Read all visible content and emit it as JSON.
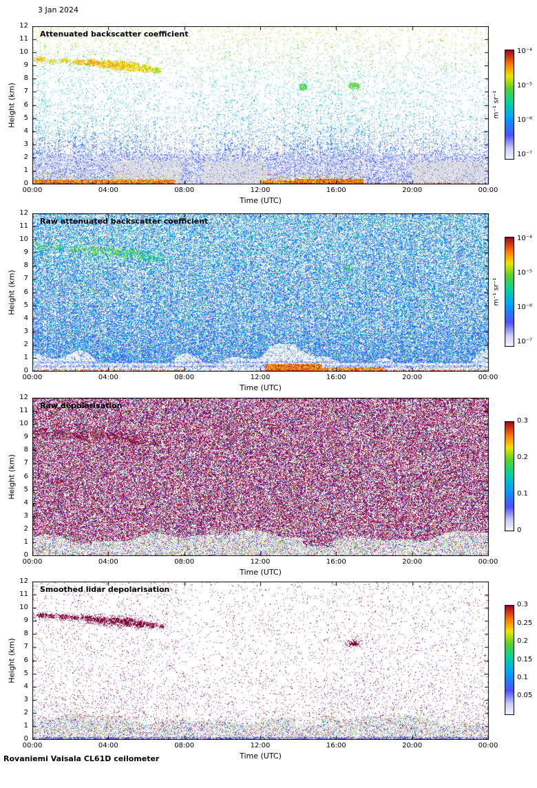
{
  "page": {
    "date_label": "3 Jan 2024",
    "footer_label": "Rovaniemi Vaisala CL61D ceilometer",
    "background": "#ffffff",
    "text_color": "#000000"
  },
  "colormap_stops": [
    [
      0.0,
      248,
      248,
      255
    ],
    [
      0.1,
      200,
      204,
      244
    ],
    [
      0.22,
      80,
      80,
      255
    ],
    [
      0.38,
      0,
      160,
      255
    ],
    [
      0.52,
      0,
      210,
      160
    ],
    [
      0.65,
      90,
      210,
      40
    ],
    [
      0.76,
      240,
      230,
      0
    ],
    [
      0.87,
      255,
      120,
      0
    ],
    [
      1.0,
      160,
      0,
      40
    ]
  ],
  "chart_data": [
    {
      "type": "heatmap",
      "kind": "backscatter",
      "seed": 11,
      "title": "Attenuated backscatter coefficient",
      "xlabel": "Time (UTC)",
      "ylabel": "Height (km)",
      "x_ticks": [
        {
          "t": 0,
          "label": "00:00"
        },
        {
          "t": 4,
          "label": "04:00"
        },
        {
          "t": 8,
          "label": "08:00"
        },
        {
          "t": 12,
          "label": "12:00"
        },
        {
          "t": 16,
          "label": "16:00"
        },
        {
          "t": 20,
          "label": "20:00"
        },
        {
          "t": 24,
          "label": "00:00"
        }
      ],
      "y_ticks": [
        0,
        1,
        2,
        3,
        4,
        5,
        6,
        7,
        8,
        9,
        10,
        11,
        12
      ],
      "xlim_hours": [
        0,
        24
      ],
      "ylim_km": [
        0,
        12
      ],
      "colorbar": {
        "scale": "log",
        "unit_label": "m⁻¹ sr⁻¹",
        "range": [
          "1e-7",
          "1e-4"
        ],
        "ticks": [
          {
            "label": "10⁻⁴",
            "pos": 0.02
          },
          {
            "label": "10⁻⁵",
            "pos": 0.335
          },
          {
            "label": "10⁻⁶",
            "pos": 0.65
          },
          {
            "label": "10⁻⁷",
            "pos": 0.965
          }
        ]
      },
      "features": {
        "cloud_layer": {
          "note": "green-yellow cloud band descending 9.5 to 8.6 km between 00:00 and 07:00, small clouds near 7.4 km around 14:00 and 17:00",
          "clouds": [
            [
              0.4,
              9.5,
              0.35,
              0.25,
              0.8
            ],
            [
              1.0,
              9.35,
              0.28,
              0.2,
              0.76
            ],
            [
              1.7,
              9.4,
              0.3,
              0.22,
              0.78
            ],
            [
              2.4,
              9.3,
              0.38,
              0.26,
              0.8
            ],
            [
              3.1,
              9.25,
              0.5,
              0.3,
              0.82
            ],
            [
              3.8,
              9.15,
              0.5,
              0.35,
              0.8
            ],
            [
              4.5,
              9.05,
              0.55,
              0.4,
              0.8
            ],
            [
              5.2,
              8.95,
              0.5,
              0.42,
              0.78
            ],
            [
              5.9,
              8.8,
              0.45,
              0.35,
              0.76
            ],
            [
              6.5,
              8.65,
              0.32,
              0.25,
              0.72
            ],
            [
              14.2,
              7.4,
              0.22,
              0.3,
              0.6
            ],
            [
              16.9,
              7.5,
              0.33,
              0.28,
              0.64
            ]
          ]
        },
        "boundary_layer": "light-blue aerosol layer below ~2 km with grey low cloud patches below ~1.5 km",
        "surface_band": {
          "note": "strong orange/red surface returns 00:00-07:30 and 12:00-17:30",
          "segments": [
            [
              0,
              7.5,
              0.8,
              0.35
            ],
            [
              7.5,
              12,
              0.08,
              0.12
            ],
            [
              12,
              13.9,
              0.85,
              0.3
            ],
            [
              13.9,
              17.4,
              0.95,
              0.4
            ],
            [
              17.4,
              24,
              0.3,
              0.15
            ]
          ]
        }
      }
    },
    {
      "type": "heatmap",
      "kind": "raw_backscatter",
      "seed": 23,
      "title": "Raw attenuated backscatter coefficient",
      "xlabel": "Time (UTC)",
      "ylabel": "Height (km)",
      "x_ticks": [
        {
          "t": 0,
          "label": "00:00"
        },
        {
          "t": 4,
          "label": "04:00"
        },
        {
          "t": 8,
          "label": "08:00"
        },
        {
          "t": 12,
          "label": "12:00"
        },
        {
          "t": 16,
          "label": "16:00"
        },
        {
          "t": 20,
          "label": "20:00"
        },
        {
          "t": 24,
          "label": "00:00"
        }
      ],
      "y_ticks": [
        0,
        1,
        2,
        3,
        4,
        5,
        6,
        7,
        8,
        9,
        10,
        11,
        12
      ],
      "xlim_hours": [
        0,
        24
      ],
      "ylim_km": [
        0,
        12
      ],
      "colorbar": {
        "scale": "log",
        "unit_label": "m⁻¹ sr⁻¹",
        "range": [
          "1e-7",
          "1e-4"
        ],
        "ticks": [
          {
            "label": "10⁻⁴",
            "pos": 0.02
          },
          {
            "label": "10⁻⁵",
            "pos": 0.335
          },
          {
            "label": "10⁻⁶",
            "pos": 0.65
          },
          {
            "label": "10⁻⁷",
            "pos": 0.965
          }
        ]
      },
      "features": {
        "noise": "dense blue/cyan speckle noise over the whole profile with scattered green",
        "cloud_layer": {
          "note": "green cloud echoes near 9 km 00:00-07:00",
          "clouds": [
            [
              0.5,
              9.5,
              0.4,
              0.3,
              0.6
            ],
            [
              1.4,
              9.4,
              0.35,
              0.25,
              0.58
            ],
            [
              2.3,
              9.3,
              0.45,
              0.3,
              0.62
            ],
            [
              3.2,
              9.2,
              0.55,
              0.35,
              0.64
            ],
            [
              4.1,
              9.1,
              0.55,
              0.4,
              0.62
            ],
            [
              5.0,
              9.0,
              0.55,
              0.45,
              0.6
            ],
            [
              5.9,
              8.8,
              0.5,
              0.4,
              0.58
            ],
            [
              6.6,
              8.65,
              0.35,
              0.3,
              0.55
            ],
            [
              16.6,
              7.9,
              0.3,
              0.3,
              0.56
            ]
          ]
        },
        "boundary_layer": "whitish low band below ~1 km, deeper clearings around 04:00-08:00",
        "surface_band": {
          "note": "strong red surface band, thickest 12:00-15:00",
          "segments": [
            [
              0,
              8,
              0.5,
              0.18
            ],
            [
              8,
              12.2,
              0.12,
              0.1
            ],
            [
              12.2,
              15.2,
              0.95,
              0.55
            ],
            [
              15.2,
              18.5,
              0.8,
              0.3
            ],
            [
              18.5,
              24,
              0.45,
              0.18
            ]
          ]
        }
      }
    },
    {
      "type": "heatmap",
      "kind": "raw_depol",
      "seed": 37,
      "title": "Raw depolarisation",
      "xlabel": "Time (UTC)",
      "ylabel": "Height (km)",
      "x_ticks": [
        {
          "t": 0,
          "label": "00:00"
        },
        {
          "t": 4,
          "label": "04:00"
        },
        {
          "t": 8,
          "label": "08:00"
        },
        {
          "t": 12,
          "label": "12:00"
        },
        {
          "t": 16,
          "label": "16:00"
        },
        {
          "t": 20,
          "label": "20:00"
        },
        {
          "t": 24,
          "label": "00:00"
        }
      ],
      "y_ticks": [
        0,
        1,
        2,
        3,
        4,
        5,
        6,
        7,
        8,
        9,
        10,
        11,
        12
      ],
      "xlim_hours": [
        0,
        24
      ],
      "ylim_km": [
        0,
        12
      ],
      "colorbar": {
        "scale": "linear",
        "unit_label": "",
        "range": [
          0,
          0.3
        ],
        "ticks": [
          {
            "label": "0.3",
            "pos": 0.0
          },
          {
            "label": "0.2",
            "pos": 0.333
          },
          {
            "label": "0.1",
            "pos": 0.667
          },
          {
            "label": "0",
            "pos": 1.0
          }
        ]
      },
      "features": {
        "noise": "dense magenta/purple high-depolarisation noise over the full profile",
        "boundary_layer": "low-depolarisation light band below ~1.5 km with multicolour speckle",
        "cloud_layer": {
          "note": "slightly denser dark patches near 9 km in the first hours",
          "clouds": [
            [
              0.5,
              9.4,
              0.5,
              0.35
            ],
            [
              1.5,
              9.3,
              0.5,
              0.3
            ],
            [
              2.5,
              9.25,
              0.6,
              0.35
            ],
            [
              3.5,
              9.15,
              0.6,
              0.4
            ],
            [
              4.5,
              9.0,
              0.6,
              0.45
            ],
            [
              5.5,
              8.85,
              0.55,
              0.4
            ],
            [
              6.4,
              8.65,
              0.4,
              0.3
            ]
          ]
        }
      }
    },
    {
      "type": "heatmap",
      "kind": "smooth_depol",
      "seed": 51,
      "title": "Smoothed lidar depolarisation",
      "xlabel": "Time (UTC)",
      "ylabel": "Height (km)",
      "x_ticks": [
        {
          "t": 0,
          "label": "00:00"
        },
        {
          "t": 4,
          "label": "04:00"
        },
        {
          "t": 8,
          "label": "08:00"
        },
        {
          "t": 12,
          "label": "12:00"
        },
        {
          "t": 16,
          "label": "16:00"
        },
        {
          "t": 20,
          "label": "20:00"
        },
        {
          "t": 24,
          "label": "00:00"
        }
      ],
      "y_ticks": [
        0,
        1,
        2,
        3,
        4,
        5,
        6,
        7,
        8,
        9,
        10,
        11,
        12
      ],
      "xlim_hours": [
        0,
        24
      ],
      "ylim_km": [
        0,
        12
      ],
      "colorbar": {
        "scale": "linear",
        "unit_label": "",
        "range": [
          0,
          0.3
        ],
        "ticks": [
          {
            "label": "0.3",
            "pos": 0.0
          },
          {
            "label": "0.25",
            "pos": 0.167
          },
          {
            "label": "0.2",
            "pos": 0.333
          },
          {
            "label": "0.15",
            "pos": 0.5
          },
          {
            "label": "0.1",
            "pos": 0.667
          },
          {
            "label": "0.05",
            "pos": 0.833
          }
        ]
      },
      "features": {
        "noise": "sparse dark-magenta speckle on white background",
        "cloud_layer": {
          "note": "dense maroon cloud clusters descending 9.5 to 8.6 km 00:00-07:00 and small cluster ~7.4 km near 17:00",
          "clouds": [
            [
              0.5,
              9.45,
              0.3,
              0.22
            ],
            [
              1.0,
              9.4,
              0.25,
              0.18
            ],
            [
              1.6,
              9.35,
              0.3,
              0.2
            ],
            [
              2.2,
              9.28,
              0.3,
              0.2
            ],
            [
              2.9,
              9.2,
              0.4,
              0.25
            ],
            [
              3.6,
              9.1,
              0.42,
              0.3
            ],
            [
              4.3,
              9.0,
              0.45,
              0.32
            ],
            [
              5.0,
              8.95,
              0.45,
              0.35
            ],
            [
              5.7,
              8.8,
              0.4,
              0.3
            ],
            [
              6.3,
              8.7,
              0.3,
              0.22
            ],
            [
              6.8,
              8.6,
              0.2,
              0.15
            ],
            [
              16.9,
              7.35,
              0.3,
              0.24
            ]
          ]
        },
        "boundary_layer": "light-blue low band below ~2 km with multicolour speckle, thinner around 14:00-15:00"
      }
    }
  ]
}
